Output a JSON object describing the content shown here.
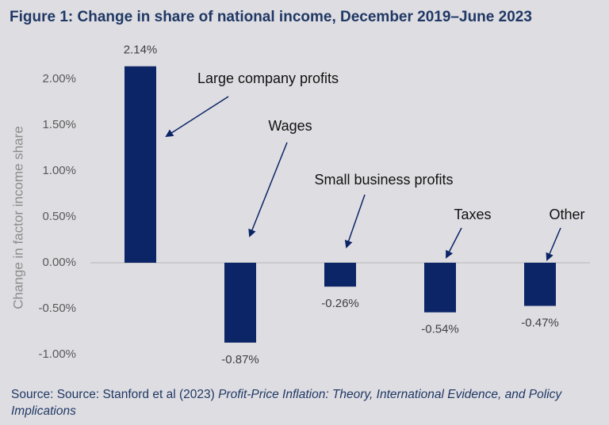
{
  "chart_data": {
    "type": "bar",
    "title": "Figure 1: Change in share of national income, December 2019–June 2023",
    "y_label": "Change in factor income share",
    "categories": [
      "Large company profits",
      "Wages",
      "Small business profits",
      "Taxes",
      "Other"
    ],
    "values": [
      2.14,
      -0.87,
      -0.26,
      -0.54,
      -0.47
    ],
    "value_labels": [
      "2.14%",
      "-0.87%",
      "-0.26%",
      "-0.54%",
      "-0.47%"
    ],
    "color": "#0b2566",
    "ylim": [
      -1.0,
      2.2
    ],
    "yticks": [
      {
        "value": -1.0,
        "label": "-1.00%"
      },
      {
        "value": -0.5,
        "label": "-0.50%"
      },
      {
        "value": 0,
        "label": "0.00%"
      },
      {
        "value": 0.5,
        "label": "0.50%"
      },
      {
        "value": 1.0,
        "label": "1.00%"
      },
      {
        "value": 1.5,
        "label": "1.50%"
      },
      {
        "value": 2.0,
        "label": "2.00%"
      }
    ],
    "grid": false,
    "source": "Source: Source: Stanford et al (2023) ",
    "source_title": "Profit-Price Inflation: Theory, International Evidence, and Policy Implications"
  }
}
